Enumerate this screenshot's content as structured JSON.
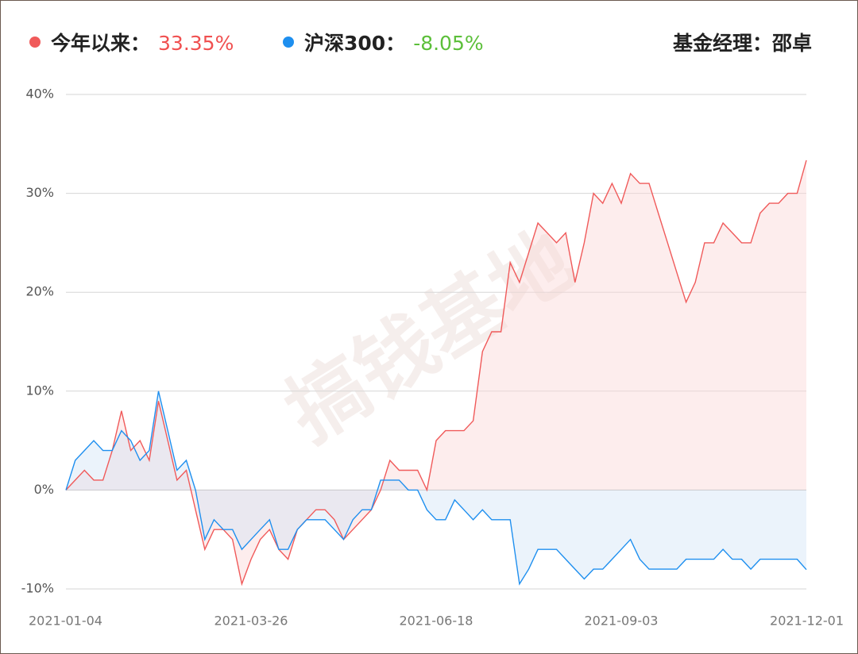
{
  "chart_data": {
    "type": "line",
    "annotation": "基金经理：邵卓",
    "watermark": "搞钱基地",
    "categories": [
      "2021-01-04",
      null,
      null,
      null,
      null,
      null,
      null,
      null,
      null,
      null,
      null,
      null,
      null,
      null,
      null,
      null,
      null,
      null,
      null,
      null,
      "2021-03-26",
      null,
      null,
      null,
      null,
      null,
      null,
      null,
      null,
      null,
      null,
      null,
      null,
      null,
      null,
      null,
      null,
      null,
      null,
      null,
      "2021-06-18",
      null,
      null,
      null,
      null,
      null,
      null,
      null,
      null,
      null,
      null,
      null,
      null,
      null,
      null,
      null,
      null,
      null,
      null,
      null,
      "2021-09-03",
      null,
      null,
      null,
      null,
      null,
      null,
      null,
      null,
      null,
      null,
      null,
      null,
      null,
      null,
      null,
      null,
      null,
      null,
      null,
      "2021-12-01"
    ],
    "series": [
      {
        "name": "今年以来：",
        "legend_value": "33.35%",
        "legend_value_color": "#f05050",
        "color": "#f05a5a",
        "fill": "rgba(250,215,215,0.45)",
        "values": [
          0,
          1,
          2,
          1,
          1,
          4,
          8,
          4,
          5,
          3,
          9,
          5,
          1,
          2,
          -2,
          -6,
          -4,
          -4,
          -5,
          -9.5,
          -7,
          -5,
          -4,
          -6,
          -7,
          -4,
          -3,
          -2,
          -2,
          -3,
          -5,
          -4,
          -3,
          -2,
          0,
          3,
          2,
          2,
          2,
          0,
          5,
          6,
          6,
          6,
          7,
          14,
          16,
          16,
          23,
          21,
          24,
          27,
          26,
          25,
          26,
          21,
          25,
          30,
          29,
          31,
          29,
          32,
          31,
          31,
          28,
          25,
          22,
          19,
          21,
          25,
          25,
          27,
          26,
          25,
          25,
          28,
          29,
          29,
          30,
          30,
          33.35
        ]
      },
      {
        "name": "沪深300：",
        "legend_value": "-8.05%",
        "legend_value_color": "#5cbf3a",
        "color": "#1e8fef",
        "fill": "rgba(205,225,245,0.4)",
        "values": [
          0,
          3,
          4,
          5,
          4,
          4,
          6,
          5,
          3,
          4,
          10,
          6,
          2,
          3,
          0,
          -5,
          -3,
          -4,
          -4,
          -6,
          -5,
          -4,
          -3,
          -6,
          -6,
          -4,
          -3,
          -3,
          -3,
          -4,
          -5,
          -3,
          -2,
          -2,
          1,
          1,
          1,
          0,
          0,
          -2,
          -3,
          -3,
          -1,
          -2,
          -3,
          -2,
          -3,
          -3,
          -3,
          -9.5,
          -8,
          -6,
          -6,
          -6,
          -7,
          -8,
          -9,
          -8,
          -8,
          -7,
          -6,
          -5,
          -7,
          -8,
          -8,
          -8,
          -8,
          -7,
          -7,
          -7,
          -7,
          -6,
          -7,
          -7,
          -8,
          -7,
          -7,
          -7,
          -7,
          -7,
          -8.05
        ]
      }
    ],
    "ylim": [
      -10,
      40
    ],
    "yticks": [
      {
        "value": -10,
        "label": "-10%"
      },
      {
        "value": 0,
        "label": "0%"
      },
      {
        "value": 10,
        "label": "10%"
      },
      {
        "value": 20,
        "label": "20%"
      },
      {
        "value": 30,
        "label": "30%"
      },
      {
        "value": 40,
        "label": "40%"
      }
    ],
    "grid": true
  }
}
